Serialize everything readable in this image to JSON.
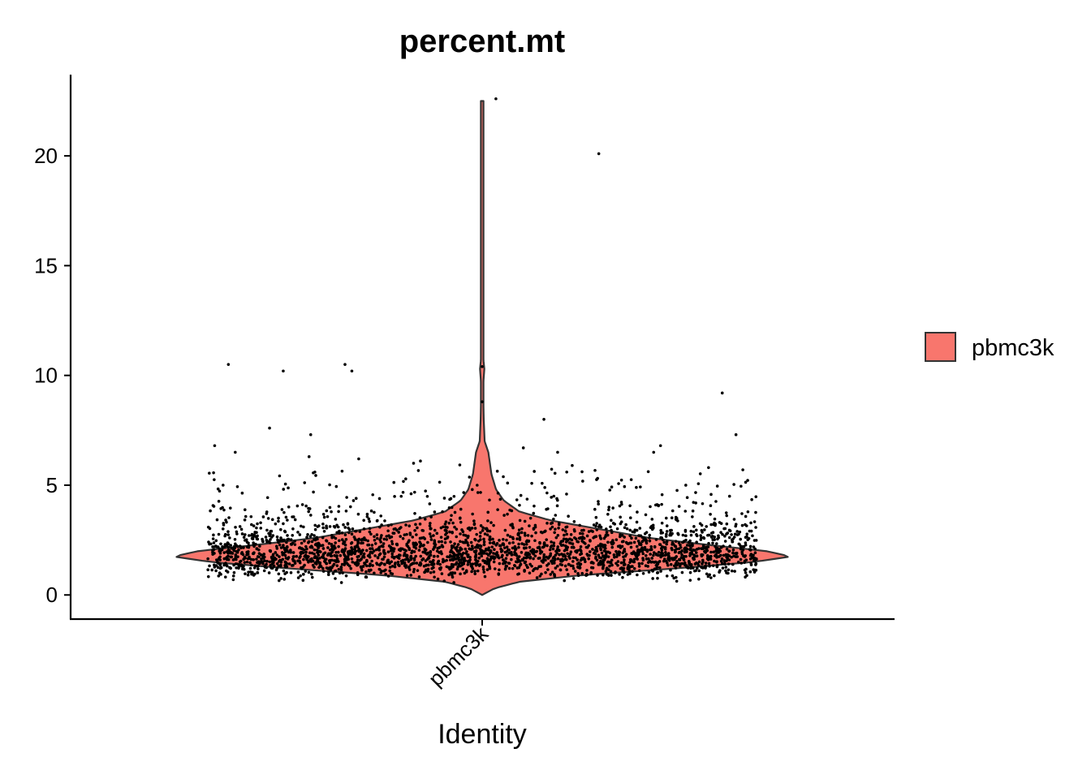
{
  "chart_data": {
    "type": "violin",
    "title": "percent.mt",
    "xlabel": "Identity",
    "ylabel": "",
    "categories": [
      "pbmc3k"
    ],
    "ylim": [
      -1.1,
      23.7
    ],
    "yticks": [
      0,
      5,
      10,
      15,
      20
    ],
    "ytick_labels": [
      "0",
      "5",
      "10",
      "15",
      "20"
    ],
    "xtick_rotation_deg": 45,
    "legend": {
      "position": "right",
      "entries": [
        {
          "label": "pbmc3k",
          "color": "#F8766D"
        }
      ]
    },
    "colors": {
      "violin_fill": "#F8766D",
      "violin_outline": "#333333",
      "points": "#000000",
      "axis": "#000000"
    },
    "grid": false,
    "violin_profile": [
      {
        "y": 0.0,
        "half_width": 0.0
      },
      {
        "y": 0.3,
        "half_width": 0.04
      },
      {
        "y": 0.6,
        "half_width": 0.12
      },
      {
        "y": 0.9,
        "half_width": 0.32
      },
      {
        "y": 1.2,
        "half_width": 0.62
      },
      {
        "y": 1.5,
        "half_width": 0.88
      },
      {
        "y": 1.75,
        "half_width": 1.0
      },
      {
        "y": 2.0,
        "half_width": 0.92
      },
      {
        "y": 2.3,
        "half_width": 0.72
      },
      {
        "y": 2.6,
        "half_width": 0.54
      },
      {
        "y": 3.0,
        "half_width": 0.38
      },
      {
        "y": 3.4,
        "half_width": 0.22
      },
      {
        "y": 3.8,
        "half_width": 0.12
      },
      {
        "y": 4.3,
        "half_width": 0.07
      },
      {
        "y": 4.8,
        "half_width": 0.045
      },
      {
        "y": 5.5,
        "half_width": 0.03
      },
      {
        "y": 6.5,
        "half_width": 0.02
      },
      {
        "y": 7.0,
        "half_width": 0.008
      },
      {
        "y": 8.0,
        "half_width": 0.005
      },
      {
        "y": 9.5,
        "half_width": 0.003
      },
      {
        "y": 10.3,
        "half_width": 0.007
      },
      {
        "y": 11.0,
        "half_width": 0.002
      },
      {
        "y": 15.0,
        "half_width": 0.002
      },
      {
        "y": 20.1,
        "half_width": 0.004
      },
      {
        "y": 21.0,
        "half_width": 0.002
      },
      {
        "y": 22.5,
        "half_width": 0.001
      }
    ],
    "jitter": {
      "n_points": 2700,
      "width": 0.4,
      "median": 1.9,
      "outliers": [
        {
          "x": -0.37,
          "y": 10.5
        },
        {
          "x": -0.29,
          "y": 10.2
        },
        {
          "x": -0.2,
          "y": 10.5
        },
        {
          "x": -0.19,
          "y": 10.2
        },
        {
          "x": -0.31,
          "y": 7.6
        },
        {
          "x": -0.25,
          "y": 7.3
        },
        {
          "x": -0.39,
          "y": 6.8
        },
        {
          "x": -0.36,
          "y": 6.5
        },
        {
          "x": -0.18,
          "y": 6.2
        },
        {
          "x": 0.02,
          "y": 22.6
        },
        {
          "x": 0.17,
          "y": 20.1
        },
        {
          "x": 0.0,
          "y": 10.4
        },
        {
          "x": 0.0,
          "y": 8.8
        },
        {
          "x": 0.09,
          "y": 8.0
        },
        {
          "x": 0.35,
          "y": 9.2
        },
        {
          "x": 0.37,
          "y": 7.3
        },
        {
          "x": 0.26,
          "y": 6.8
        },
        {
          "x": 0.25,
          "y": 6.5
        },
        {
          "x": 0.11,
          "y": 6.5
        },
        {
          "x": 0.06,
          "y": 6.7
        },
        {
          "x": -0.1,
          "y": 6.0
        },
        {
          "x": -0.09,
          "y": 6.1
        },
        {
          "x": 0.33,
          "y": 5.8
        },
        {
          "x": 0.38,
          "y": 5.7
        }
      ]
    }
  }
}
